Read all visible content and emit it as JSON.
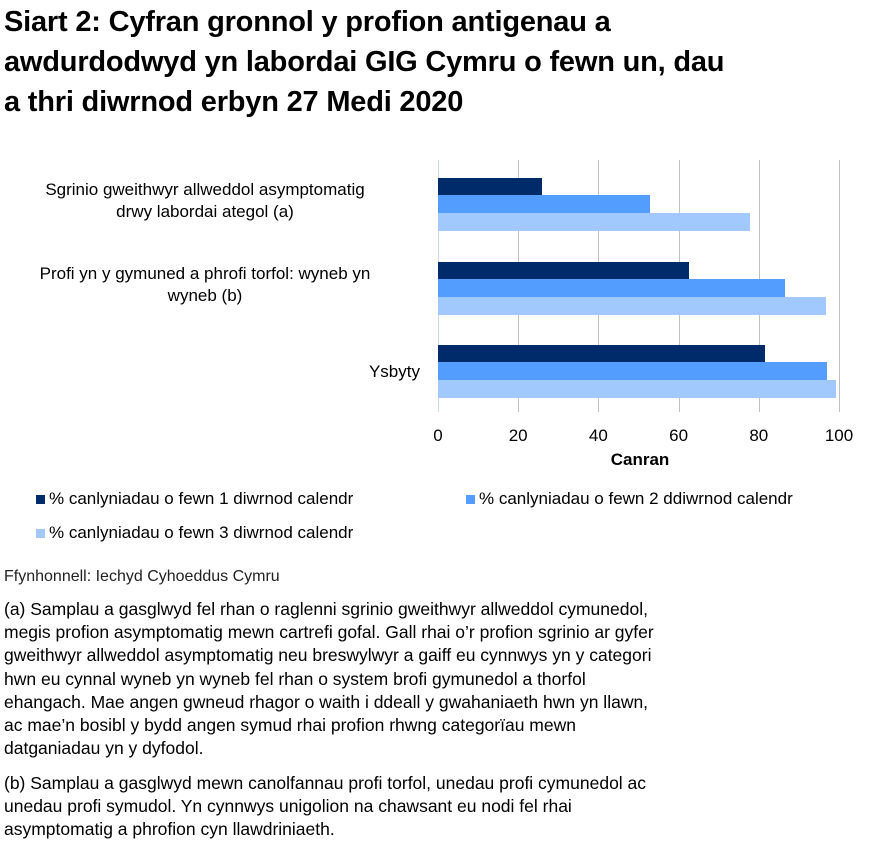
{
  "title": "Siart 2: Cyfran gronnol y profion antigenau a awdurdodwyd yn labordai GIG Cymru o fewn un, dau a thri diwrnod erbyn 27 Medi 2020",
  "title_lines": [
    "Siart 2: Cyfran gronnol y profion antigenau a",
    "awdurdodwyd yn labordai GIG Cymru o fewn un, dau",
    "a thri diwrnod erbyn 27 Medi 2020"
  ],
  "colors": {
    "series_1": "#002b6b",
    "series_2": "#529dfe",
    "series_3": "#a1c9fd",
    "grid": "#c0c0c0"
  },
  "categories_display": [
    {
      "lines": [
        "Sgrinio gweithwyr allweddol asymptomatig",
        "drwy labordai ategol (a)"
      ]
    },
    {
      "lines": [
        "Profi yn y gymuned a phrofi torfol: wyneb yn",
        "wyneb (b)"
      ]
    },
    {
      "lines": [
        "Ysbyty"
      ]
    }
  ],
  "x_ticks": [
    "0",
    "20",
    "40",
    "60",
    "80",
    "100"
  ],
  "xlabel": "Canran",
  "legend": [
    "% canlyniadau o fewn 1 diwrnod calendr",
    "% canlyniadau o fewn 2 ddiwrnod calendr",
    "% canlyniadau o fewn 3 diwrnod calendr"
  ],
  "source": "Ffynhonnell: Iechyd Cyhoeddus Cymru",
  "notes": {
    "a_lines": [
      "(a) Samplau a gasglwyd fel rhan o raglenni sgrinio gweithwyr allweddol cymunedol,",
      "megis profion asymptomatig mewn cartrefi gofal. Gall rhai o’r profion sgrinio ar gyfer",
      "gweithwyr allweddol asymptomatig neu breswylwyr a gaiff eu cynnwys yn y categori",
      "hwn eu cynnal wyneb yn wyneb fel rhan o system brofi gymunedol a thorfol",
      "ehangach. Mae angen gwneud rhagor o waith i ddeall y gwahaniaeth hwn yn llawn,",
      "ac mae’n bosibl y bydd angen symud rhai profion rhwng categorïau mewn",
      "datganiadau yn y dyfodol."
    ],
    "b_lines": [
      "(b) Samplau a gasglwyd mewn canolfannau profi torfol, unedau profi cymunedol ac",
      "unedau profi symudol. Yn cynnwys unigolion na chawsant eu nodi fel rhai",
      "asymptomatig a phrofion cyn llawdriniaeth."
    ]
  },
  "chart_data": {
    "type": "bar",
    "orientation": "horizontal",
    "title": "Siart 2: Cyfran gronnol y profion antigenau a awdurdodwyd yn labordai GIG Cymru o fewn un, dau a thri diwrnod erbyn 27 Medi 2020",
    "categories": [
      "Sgrinio gweithwyr allweddol asymptomatig drwy labordai ategol (a)",
      "Profi yn y gymuned a phrofi torfol: wyneb yn wyneb (b)",
      "Ysbyty"
    ],
    "series": [
      {
        "name": "% canlyniadau o fewn 1 diwrnod calendr",
        "color": "#002b6b",
        "values": [
          26.0,
          62.6,
          81.5
        ]
      },
      {
        "name": "% canlyniadau o fewn 2 ddiwrnod calendr",
        "color": "#529dfe",
        "values": [
          52.9,
          86.5,
          96.9
        ]
      },
      {
        "name": "% canlyniadau o fewn 3 diwrnod calendr",
        "color": "#a1c9fd",
        "values": [
          77.8,
          96.7,
          99.2
        ]
      }
    ],
    "xlabel": "Canran",
    "ylabel": "",
    "xlim": [
      0,
      100
    ],
    "x_ticks": [
      0,
      20,
      40,
      60,
      80,
      100
    ],
    "grid": "vertical gridlines at each tick",
    "legend_position": "bottom"
  }
}
